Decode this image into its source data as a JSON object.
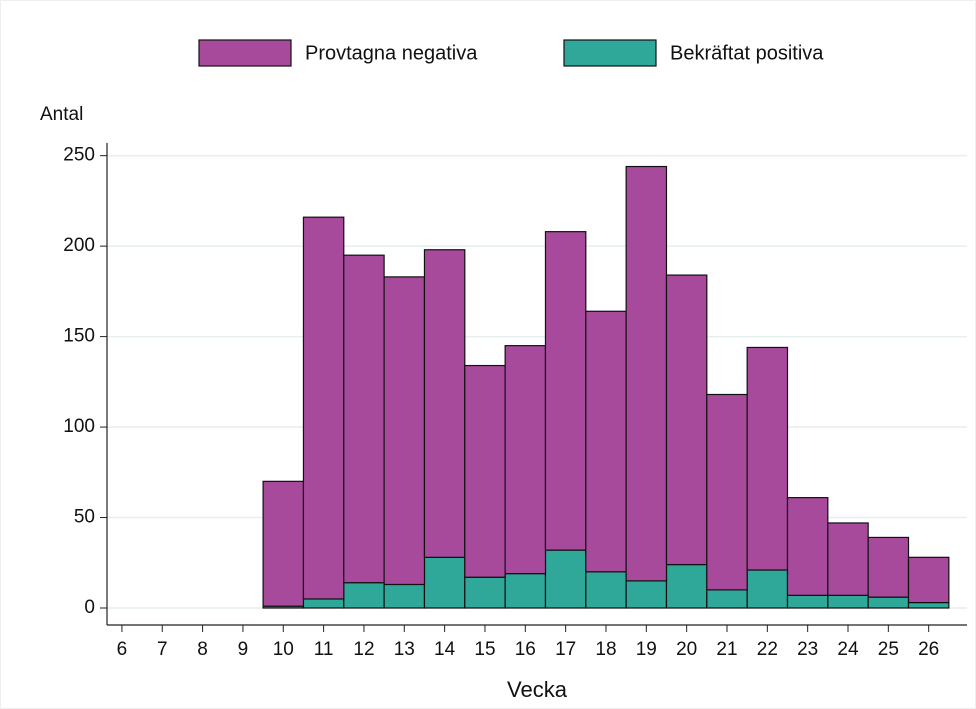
{
  "chart_data": {
    "type": "bar",
    "stacked": true,
    "y_label": "Antal",
    "x_label": "Vecka",
    "x": [
      10,
      11,
      12,
      13,
      14,
      15,
      16,
      17,
      18,
      19,
      20,
      21,
      22,
      23,
      24,
      25,
      26
    ],
    "series": [
      {
        "name": "Bekräftat positiva",
        "color": "#2fa89a",
        "values": [
          1,
          5,
          14,
          13,
          28,
          17,
          19,
          32,
          20,
          15,
          24,
          10,
          21,
          7,
          7,
          6,
          3
        ]
      },
      {
        "name": "Provtagna negativa",
        "color": "#a84a9c",
        "values": [
          69,
          211,
          181,
          170,
          170,
          117,
          126,
          176,
          144,
          229,
          160,
          108,
          123,
          54,
          40,
          33,
          25
        ]
      }
    ],
    "xlim": [
      5.63,
      26.95
    ],
    "xticks": [
      6,
      7,
      8,
      9,
      10,
      11,
      12,
      13,
      14,
      15,
      16,
      17,
      18,
      19,
      20,
      21,
      22,
      23,
      24,
      25,
      26
    ],
    "ylim": [
      -9.4,
      257
    ],
    "yticks": [
      0,
      50,
      100,
      150,
      200,
      250
    ],
    "grid": true
  }
}
